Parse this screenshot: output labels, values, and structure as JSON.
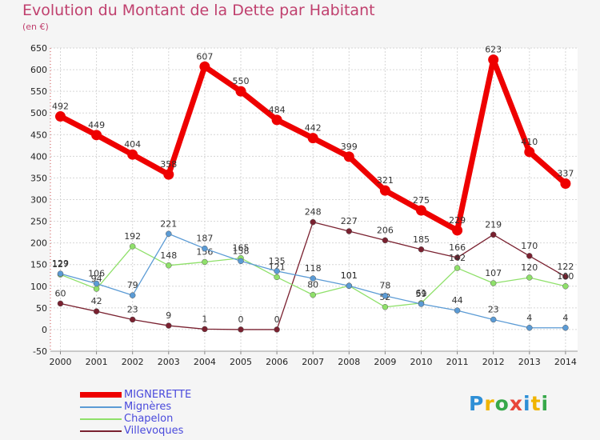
{
  "chart_data": {
    "type": "line",
    "title": "Evolution du Montant de la Dette par Habitant",
    "subtitle": "(en €)",
    "x": [
      "2000",
      "2001",
      "2002",
      "2003",
      "2004",
      "2005",
      "2006",
      "2007",
      "2008",
      "2009",
      "2010",
      "2011",
      "2012",
      "2013",
      "2014"
    ],
    "ylim": [
      -50,
      650
    ],
    "yticks": [
      -50,
      0,
      50,
      100,
      150,
      200,
      250,
      300,
      350,
      400,
      450,
      500,
      550,
      600,
      650
    ],
    "grid": true,
    "legend_position": "bottom-left",
    "series": [
      {
        "name": "MIGNERETTE",
        "color": "#ee0000",
        "values": [
          492,
          449,
          404,
          358,
          607,
          550,
          484,
          442,
          399,
          321,
          275,
          229,
          623,
          410,
          337
        ]
      },
      {
        "name": "Mignères",
        "color": "#5b9bd5",
        "values": [
          129,
          106,
          79,
          221,
          187,
          158,
          135,
          118,
          101,
          78,
          59,
          44,
          23,
          4,
          4
        ]
      },
      {
        "name": "Chapelon",
        "color": "#8fe06a",
        "values": [
          127,
          94,
          192,
          148,
          156,
          165,
          121,
          80,
          101,
          52,
          61,
          142,
          107,
          120,
          100
        ]
      },
      {
        "name": "Villevoques",
        "color": "#7a2130",
        "values": [
          60,
          42,
          23,
          9,
          1,
          0,
          0,
          248,
          227,
          206,
          185,
          166,
          219,
          170,
          122
        ]
      }
    ]
  },
  "logo": {
    "letters": [
      "P",
      "r",
      "o",
      "x",
      "i",
      "t",
      "i"
    ],
    "colors": [
      "#2e8fd6",
      "#f0b400",
      "#37a84a",
      "#e8463a",
      "#2e8fd6",
      "#f0b400",
      "#37a84a"
    ]
  }
}
